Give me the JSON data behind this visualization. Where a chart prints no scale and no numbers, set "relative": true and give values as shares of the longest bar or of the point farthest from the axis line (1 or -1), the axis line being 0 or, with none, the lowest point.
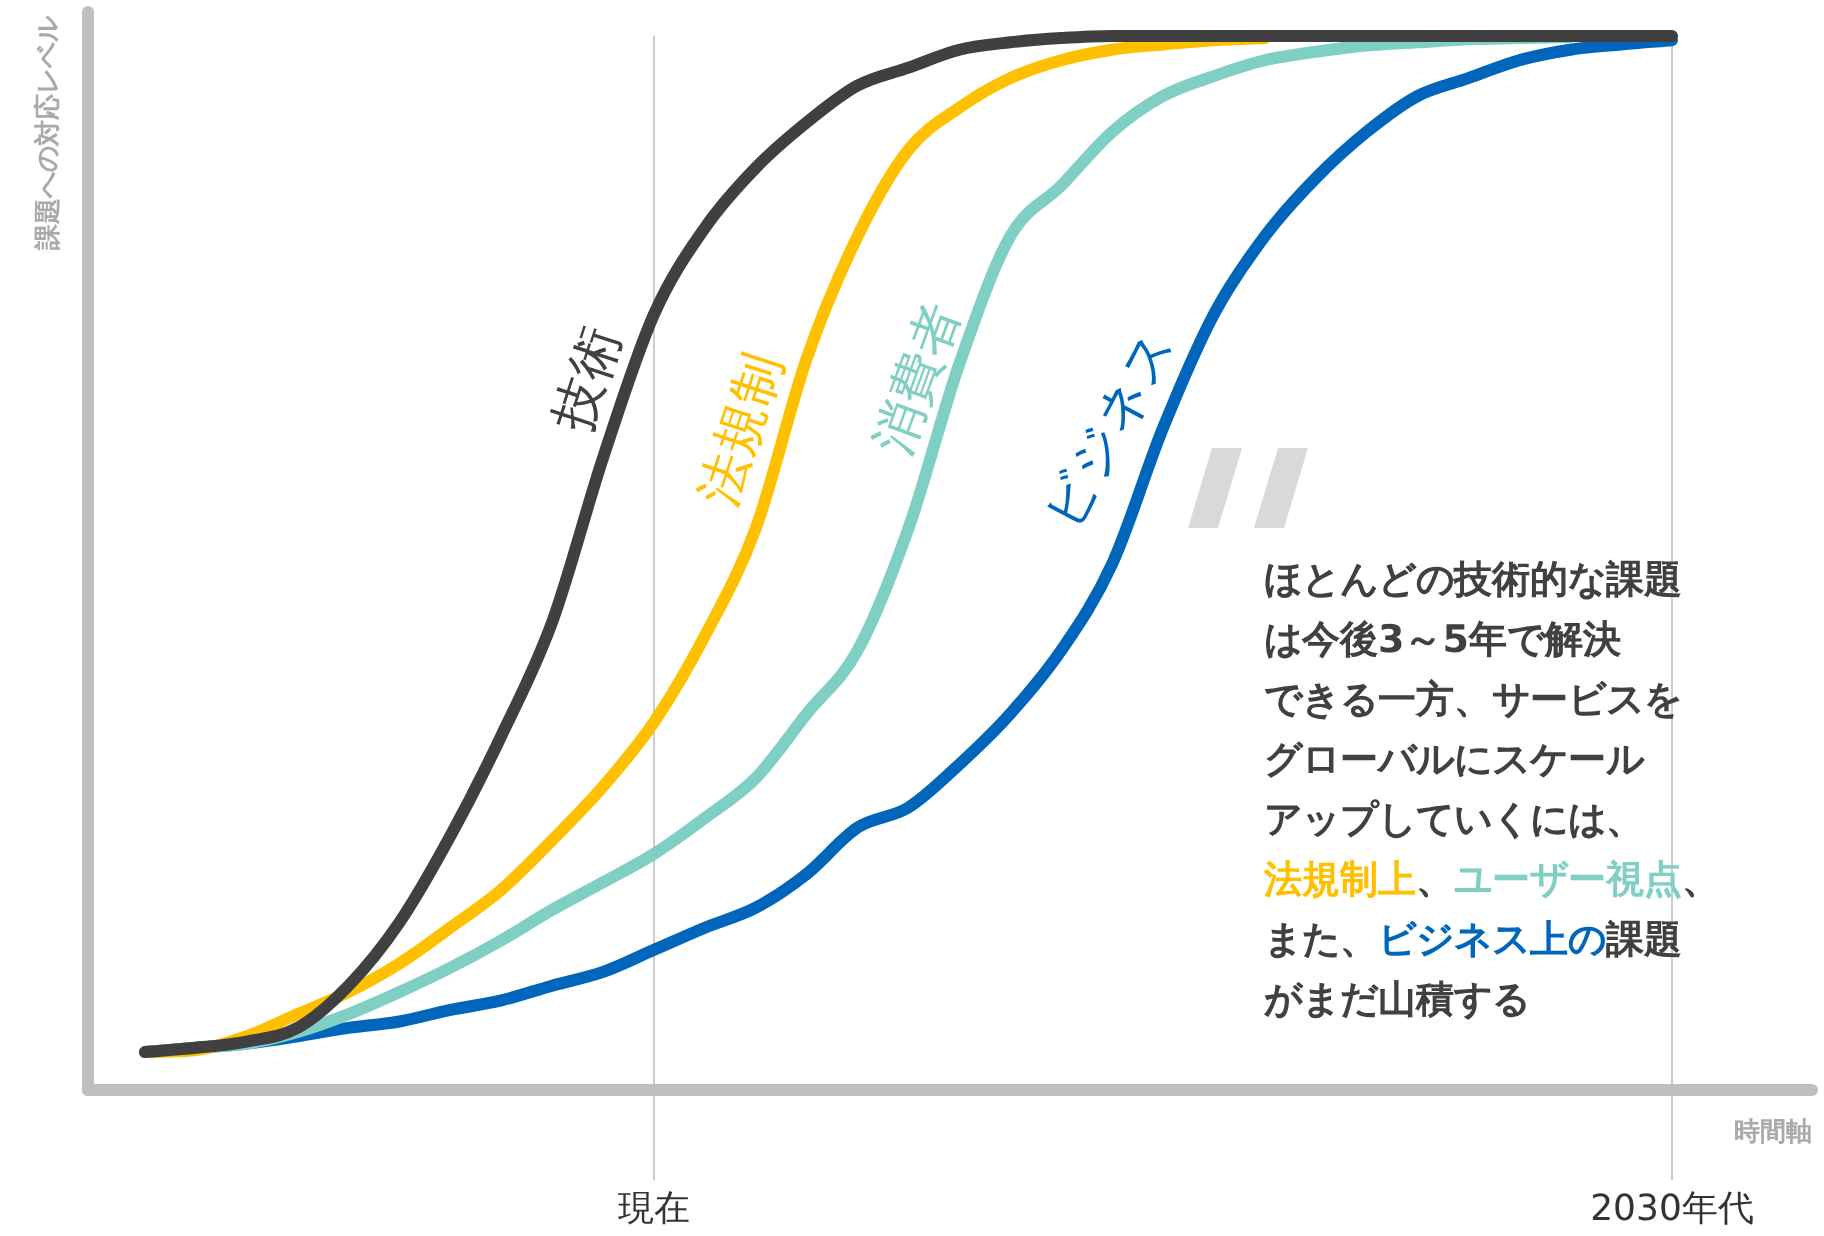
{
  "chart_data": {
    "type": "line",
    "relative": true,
    "grid": "x",
    "legend": false,
    "xlabel": "時間軸",
    "ylabel": "課題への対応レベル",
    "categories": [
      null,
      null,
      null,
      null,
      null,
      null,
      null,
      null,
      null,
      null,
      "現在",
      null,
      null,
      null,
      null,
      null,
      null,
      null,
      null,
      null,
      null,
      null,
      null,
      null,
      null,
      null,
      null,
      null,
      null,
      null,
      "2030年代"
    ],
    "series": [
      {
        "name": "技術",
        "color": "#404040",
        "values": [
          0.036,
          0.04,
          0.046,
          0.059,
          0.099,
          0.159,
          0.241,
          0.336,
          0.444,
          0.6,
          0.736,
          0.818,
          0.875,
          0.918,
          0.953,
          0.97,
          0.987,
          0.994,
          0.998,
          1,
          1,
          1,
          1,
          1,
          1,
          1,
          1,
          1,
          1,
          1,
          1
        ]
      },
      {
        "name": "法規制",
        "color": "#ffc000",
        "values": [
          0.036,
          0.038,
          0.051,
          0.072,
          0.093,
          0.12,
          0.154,
          0.19,
          0.237,
          0.288,
          0.349,
          0.431,
          0.533,
          0.694,
          0.81,
          0.892,
          0.932,
          0.96,
          0.977,
          0.987,
          0.992,
          0.996,
          0.998,
          null,
          null,
          null,
          null,
          null,
          null,
          null,
          null
        ]
      },
      {
        "name": "消費者",
        "color": "#7fcfc4",
        "values": [
          0.036,
          0.04,
          0.044,
          0.055,
          0.072,
          0.093,
          0.116,
          0.142,
          0.171,
          0.197,
          0.224,
          0.258,
          0.296,
          0.357,
          0.417,
          0.533,
          0.689,
          0.81,
          0.858,
          0.909,
          0.943,
          0.962,
          0.977,
          0.985,
          0.991,
          0.994,
          0.997,
          0.998,
          0.999,
          null,
          null
        ]
      },
      {
        "name": "ビジネス",
        "color": "#0066bb",
        "values": [
          0.036,
          0.04,
          0.044,
          0.051,
          0.059,
          0.065,
          0.076,
          0.085,
          0.099,
          0.112,
          0.133,
          0.154,
          0.173,
          0.205,
          0.249,
          0.268,
          0.309,
          0.357,
          0.417,
          0.499,
          0.628,
          0.736,
          0.81,
          0.865,
          0.909,
          0.943,
          0.96,
          0.977,
          0.987,
          0.992,
          0.996
        ]
      }
    ],
    "annotations": [
      "ほとんどの技術的な課題",
      "は今後3～5年で解決",
      "できる一方、サービスを",
      "グローバルにスケール",
      "アップしていくには、",
      "法規制上",
      "、",
      "ユーザー視点",
      "、",
      "また、",
      "ビジネス上の",
      "課題",
      "がまだ山積する"
    ]
  }
}
